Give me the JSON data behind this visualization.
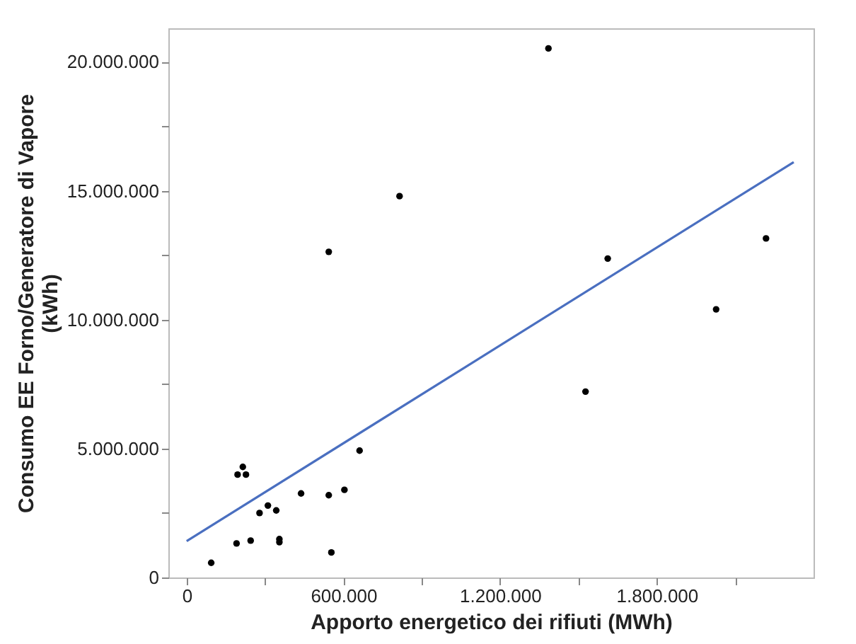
{
  "chart_data": {
    "type": "scatter",
    "xlabel": "Apporto energetico dei rifiuti (MWh)",
    "ylabel": "Consumo EE Forno/Generatore di Vapore (kWh)",
    "xlim": [
      -70000,
      2400000
    ],
    "ylim": [
      0,
      21300000
    ],
    "xticks": [
      {
        "value": 0,
        "label": "0"
      },
      {
        "value": 300000,
        "label": null
      },
      {
        "value": 600000,
        "label": "600.000"
      },
      {
        "value": 900000,
        "label": null
      },
      {
        "value": 1200000,
        "label": "1.200.000"
      },
      {
        "value": 1500000,
        "label": null
      },
      {
        "value": 1800000,
        "label": "1.800.000"
      },
      {
        "value": 2100000,
        "label": null
      }
    ],
    "yticks": [
      {
        "value": 0,
        "label": "0"
      },
      {
        "value": 2500000,
        "label": null
      },
      {
        "value": 5000000,
        "label": "5.000.000"
      },
      {
        "value": 7500000,
        "label": null
      },
      {
        "value": 10000000,
        "label": "10.000.000"
      },
      {
        "value": 12500000,
        "label": null
      },
      {
        "value": 15000000,
        "label": "15.000.000"
      },
      {
        "value": 17500000,
        "label": null
      },
      {
        "value": 20000000,
        "label": "20.000.000"
      }
    ],
    "grid": false,
    "marker": "circle",
    "series": [
      {
        "color": "#000000",
        "x": [
          94000,
          191000,
          245000,
          195000,
          215000,
          227000,
          279000,
          311000,
          343000,
          355000,
          355000,
          438000,
          544000,
          554000,
          544000,
          604000,
          662000,
          815000,
          1385000,
          1527000,
          1612000,
          2027000,
          2218000
        ],
        "values": [
          570000,
          1320000,
          1430000,
          3990000,
          4290000,
          3990000,
          2500000,
          2790000,
          2600000,
          1490000,
          1370000,
          3260000,
          3190000,
          970000,
          12630000,
          3400000,
          4920000,
          14790000,
          20520000,
          7210000,
          12370000,
          10400000,
          13150000
        ]
      },
      {
        "type": "line",
        "color": "#4a6fc0",
        "line_style": "solid",
        "marker": "none",
        "x": [
          0,
          2324000
        ],
        "values": [
          1410000,
          16110000
        ]
      }
    ]
  }
}
